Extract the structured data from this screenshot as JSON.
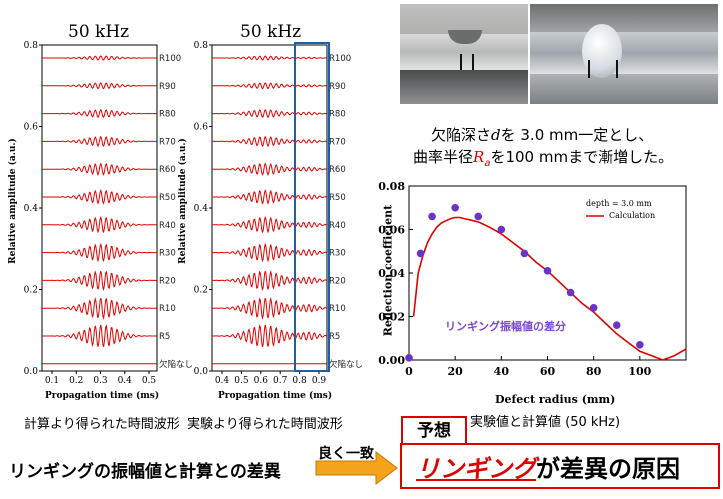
{
  "panel_left": {
    "title": "50 kHz",
    "ylabel": "Relative amplitude (a.u.)",
    "xlabel": "Propagation time (ms)",
    "yticks": [
      "0.0",
      "0.2",
      "0.4",
      "0.6",
      "0.8"
    ],
    "xticks": [
      "0.1",
      "0.2",
      "0.3",
      "0.4",
      "0.5"
    ],
    "trace_labels": [
      "R100",
      "R90",
      "R80",
      "R70",
      "R60",
      "R50",
      "R40",
      "R30",
      "R20",
      "R10",
      "R5",
      "欠陥なし"
    ],
    "caption": "計算より得られた時間波形"
  },
  "panel_mid": {
    "title": "50 kHz",
    "ylabel": "Relative amplitude (a.u.)",
    "xlabel": "Propagation time (ms)",
    "yticks": [
      "0.0",
      "0.2",
      "0.4",
      "0.6",
      "0.8"
    ],
    "xticks": [
      "0.4",
      "0.5",
      "0.6",
      "0.7",
      "0.8",
      "0.9"
    ],
    "trace_labels": [
      "R100",
      "R90",
      "R80",
      "R70",
      "R60",
      "R50",
      "R40",
      "R30",
      "R20",
      "R10",
      "R5",
      "欠陥なし"
    ],
    "caption": "実験より得られた時間波形"
  },
  "text_right": {
    "line1_a": "欠陥深さ",
    "line1_d": "d",
    "line1_b": "を 3.0 mm一定とし、",
    "line2_a": "曲率半径",
    "line2_R": "R",
    "line2_sub": "a",
    "line2_b": "を100 mmまで漸増した。"
  },
  "chart_data": {
    "type": "scatter",
    "title": "",
    "xlabel": "Defect radius (mm)",
    "ylabel": "Reflection coefficient",
    "xlim": [
      0,
      120
    ],
    "ylim": [
      0,
      0.08
    ],
    "xticks": [
      0,
      20,
      40,
      60,
      80,
      100
    ],
    "yticks": [
      "0.00",
      "0.02",
      "0.04",
      "0.06",
      "0.08"
    ],
    "legend_title": "depth = 3.0 mm",
    "legend_line": "Calculation",
    "annotation": "リンギング振幅値の差分",
    "points": {
      "x": [
        0,
        5,
        10,
        20,
        30,
        40,
        50,
        60,
        70,
        80,
        90,
        100
      ],
      "y": [
        0.001,
        0.049,
        0.066,
        0.07,
        0.066,
        0.06,
        0.049,
        0.041,
        0.031,
        0.024,
        0.016,
        0.007
      ]
    },
    "calculation": {
      "x": [
        2,
        4,
        6,
        8,
        10,
        12,
        14,
        16,
        18,
        20,
        22,
        24,
        26,
        28,
        30,
        35,
        40,
        45,
        50,
        55,
        60,
        65,
        70,
        75,
        80,
        85,
        90,
        95,
        100,
        105,
        110,
        115,
        120
      ],
      "y": [
        0.02,
        0.04,
        0.048,
        0.054,
        0.058,
        0.061,
        0.063,
        0.064,
        0.065,
        0.0655,
        0.0655,
        0.065,
        0.0645,
        0.064,
        0.0635,
        0.061,
        0.058,
        0.054,
        0.05,
        0.045,
        0.041,
        0.036,
        0.031,
        0.026,
        0.022,
        0.017,
        0.012,
        0.008,
        0.004,
        0.002,
        0.0,
        0.002,
        0.005
      ],
      "color": "#e00000"
    },
    "point_color": "#6a34c8",
    "caption": "実験値と計算値 (50 kHz)"
  },
  "bottom": {
    "left_text": "リンギングの振幅値と計算との差異",
    "arrow_text": "良く一致",
    "yoso": "予想",
    "conclusion_red": "リンギング",
    "conclusion_rest": "が差異の原因",
    "arrow_color": "#f5a21c",
    "accent_red": "#e00000"
  }
}
